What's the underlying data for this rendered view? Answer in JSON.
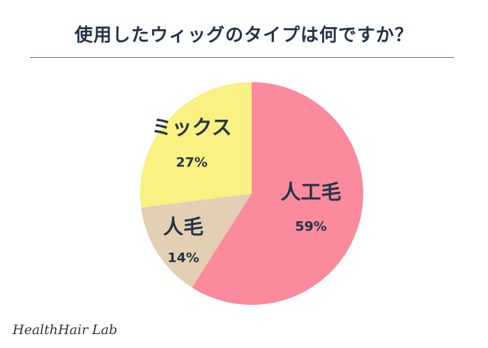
{
  "chart_data": {
    "type": "pie",
    "title": "使用したウィッグのタイプは何ですか？",
    "slices": [
      {
        "label": "人工毛",
        "value": 59,
        "value_label": "59%",
        "color": "#fa8a9c"
      },
      {
        "label": "人毛",
        "value": 14,
        "value_label": "14%",
        "color": "#e3d0b4"
      },
      {
        "label": "ミックス",
        "value": 27,
        "value_label": "27%",
        "color": "#f9f181"
      }
    ]
  },
  "footer": {
    "brand": "HealthHair Lab"
  }
}
